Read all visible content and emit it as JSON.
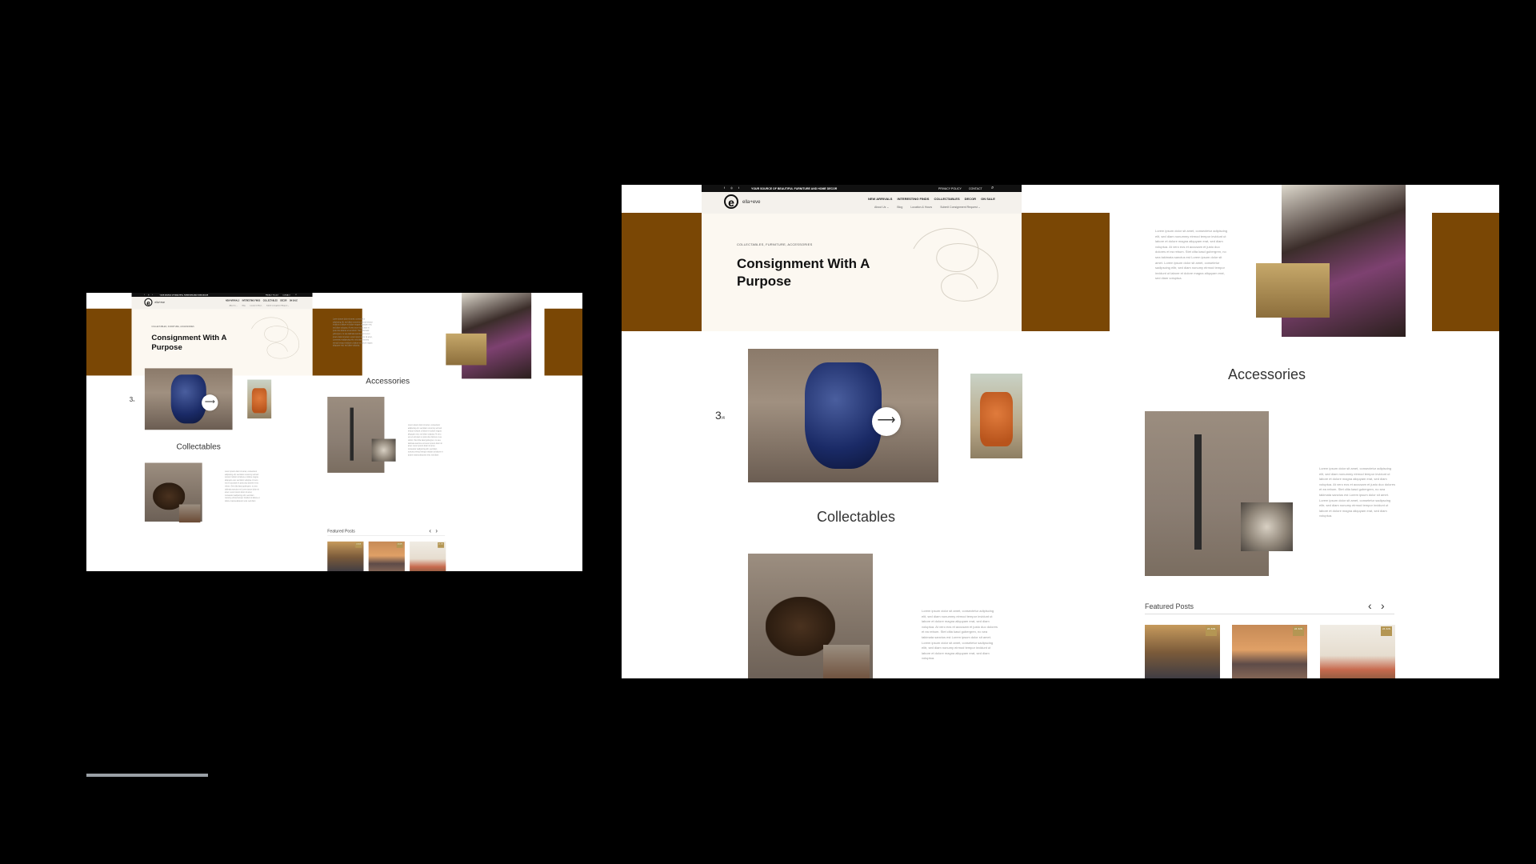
{
  "topbar": {
    "social_icons": [
      "facebook-icon",
      "instagram-icon",
      "twitter-icon"
    ],
    "social_glyphs": "f ◎ t",
    "tagline": "YOUR SOURCE OF BEAUTIFUL FURNITURE AND HOME DECOR",
    "privacy": "PRIVACY POLICY",
    "contact": "CONTACT",
    "search_glyph": "⌕"
  },
  "logo": {
    "mark": "e",
    "text": "ella+eve"
  },
  "nav": {
    "main": [
      "NEW ARRIVALS",
      "INTERESTING FINDS",
      "COLLECTABLES",
      "DECOR",
      "ON SALE"
    ],
    "sub": [
      "About Us ⌄",
      "Blog",
      "Location & Hours",
      "Submit Consignment Request ⌄"
    ]
  },
  "hero": {
    "eyebrow": "COLLECTABLES, FURNITURE, ACCESSORIES",
    "title": "Consignment With A Purpose"
  },
  "lorem": "Lorem ipsum dolor sit amet, consectetur adipiscing elit, sed diam nonummy eirmod tempor invidunt ut labore et dolore magna aliquyam erat, sed diam voluptua. At vero eos et accusam et justo duo dolores et ea rebum. Stet clita kasd gubergren, no sea takimata sanctus est Lorem ipsum dolor sit amet. Lorem ipsum dolor sit amet, consetetur sadipscing elitr, sed diam nonumy eirmod tempor invidunt ut labore et dolore magna aliquyam erat, sed diam voluptua.",
  "carousel": {
    "current": "3",
    "total": "/4",
    "next_glyph": "⟶"
  },
  "sections": {
    "accessories": "Accessories",
    "collectables": "Collectables"
  },
  "featured": {
    "title": "Featured Posts",
    "prev": "‹",
    "next": "›",
    "dates": [
      "24 JUN",
      "24 JUN",
      "24 JUN"
    ]
  },
  "colors": {
    "brand_brown": "#7a4705",
    "hero_bg": "#fcf8f1",
    "page_bg": "#000000"
  }
}
